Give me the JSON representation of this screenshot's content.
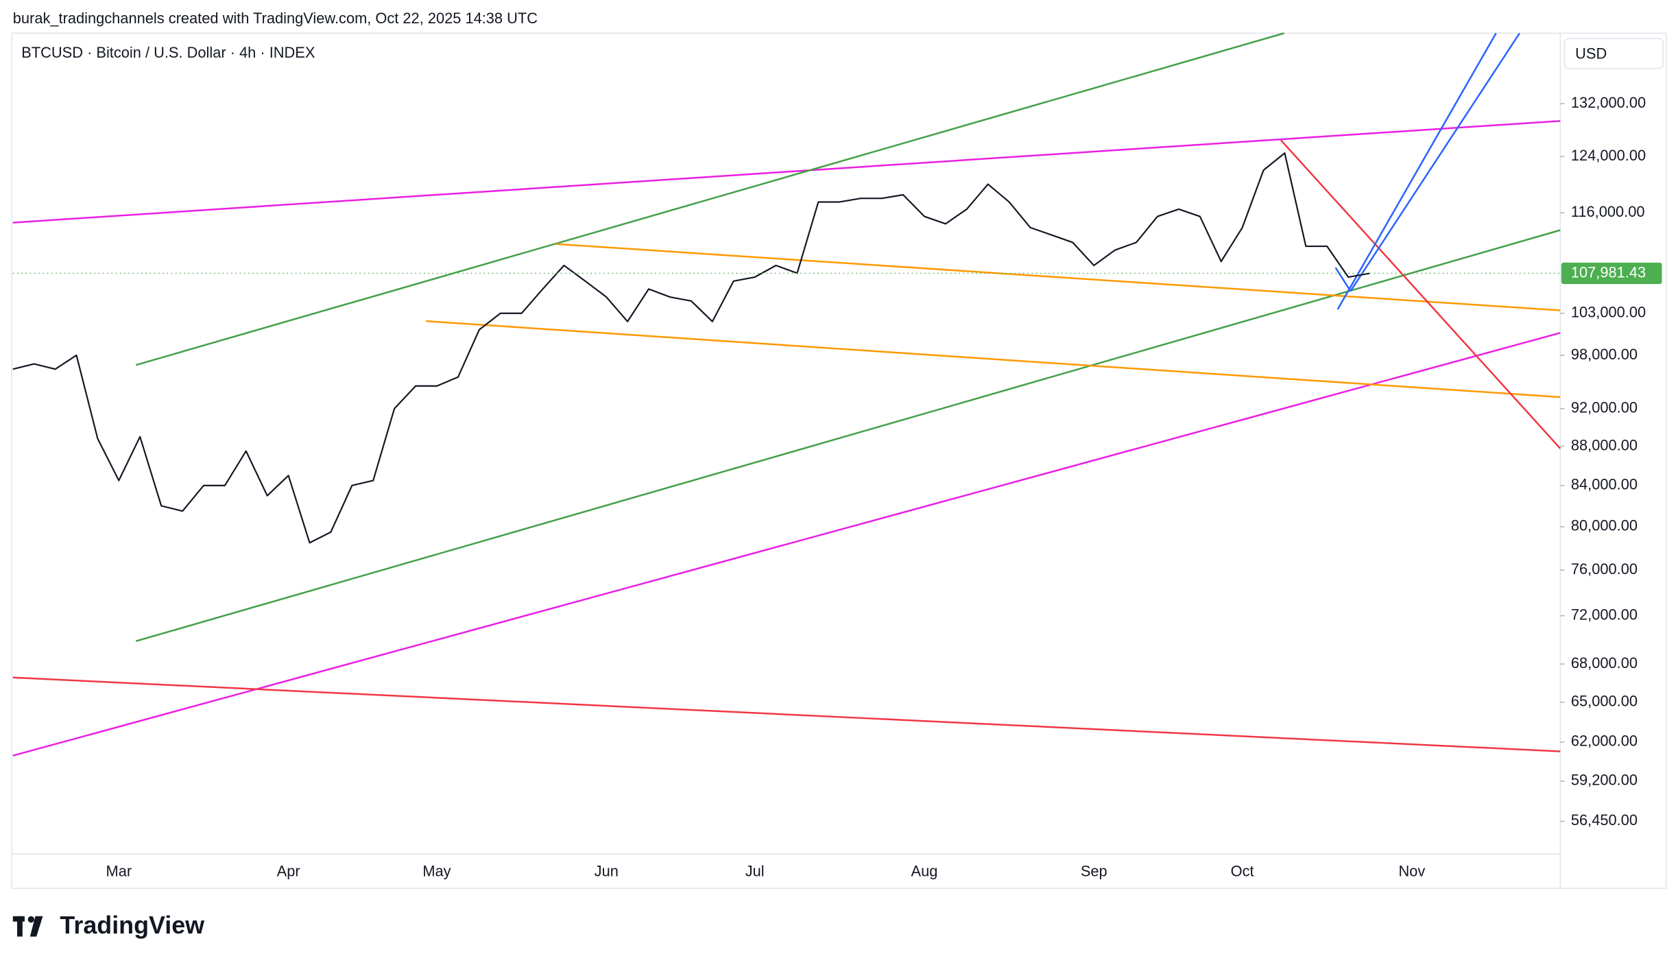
{
  "header": "burak_tradingchannels created with TradingView.com, Oct 22, 2025 14:38 UTC",
  "brand": "TradingView",
  "chart_data": {
    "type": "line",
    "title": "BTCUSD · Bitcoin / U.S. Dollar · 4h · INDEX",
    "currency": "USD",
    "color": "#131722",
    "log_scale": true,
    "categories": [
      null,
      null,
      null,
      null,
      null,
      "Mar",
      null,
      null,
      null,
      null,
      null,
      null,
      null,
      "Apr",
      null,
      null,
      null,
      null,
      null,
      null,
      "May",
      null,
      null,
      null,
      null,
      null,
      null,
      null,
      "Jun",
      null,
      null,
      null,
      null,
      null,
      null,
      "Jul",
      null,
      null,
      null,
      null,
      null,
      null,
      null,
      "Aug",
      null,
      null,
      null,
      null,
      null,
      null,
      null,
      "Sep",
      null,
      null,
      null,
      null,
      null,
      null,
      "Oct",
      null,
      null,
      null,
      null,
      null,
      null,
      null,
      "Nov",
      null,
      null,
      null,
      null,
      null,
      null,
      null
    ],
    "values": [
      96400,
      97000,
      96400,
      98000,
      88800,
      84500,
      89000,
      82000,
      81500,
      84000,
      84000,
      87500,
      83000,
      85000,
      78500,
      79500,
      84000,
      84500,
      92000,
      94500,
      94500,
      95500,
      101000,
      103000,
      103000,
      106000,
      109000,
      107000,
      105000,
      102000,
      106000,
      105000,
      104500,
      102000,
      107000,
      107500,
      109000,
      108000,
      117500,
      117500,
      118000,
      118000,
      118500,
      115500,
      114500,
      116500,
      120000,
      117500,
      114000,
      113000,
      112000,
      109000,
      111000,
      112000,
      115500,
      116500,
      115500,
      109500,
      114000,
      122000,
      124500,
      111500,
      111500,
      107500,
      107981.43,
      null,
      null,
      null,
      null,
      null,
      null,
      null,
      null,
      null
    ],
    "last_price": {
      "value": 107981.43,
      "label": "107,981.43"
    },
    "last_price_color": "#4caf50",
    "ylim": [
      54300,
      143300
    ],
    "yticks": [
      {
        "value": 132000,
        "label": "132,000.00"
      },
      {
        "value": 124000,
        "label": "124,000.00"
      },
      {
        "value": 116000,
        "label": "116,000.00"
      },
      {
        "value": 103000,
        "label": "103,000.00"
      },
      {
        "value": 98000,
        "label": "98,000.00"
      },
      {
        "value": 92000,
        "label": "92,000.00"
      },
      {
        "value": 88000,
        "label": "88,000.00"
      },
      {
        "value": 84000,
        "label": "84,000.00"
      },
      {
        "value": 80000,
        "label": "80,000.00"
      },
      {
        "value": 76000,
        "label": "76,000.00"
      },
      {
        "value": 72000,
        "label": "72,000.00"
      },
      {
        "value": 68000,
        "label": "68,000.00"
      },
      {
        "value": 65000,
        "label": "65,000.00"
      },
      {
        "value": 62000,
        "label": "62,000.00"
      },
      {
        "value": 59200,
        "label": "59,200.00"
      },
      {
        "value": 56450,
        "label": "56,450.00"
      }
    ],
    "grid": false
  }
}
